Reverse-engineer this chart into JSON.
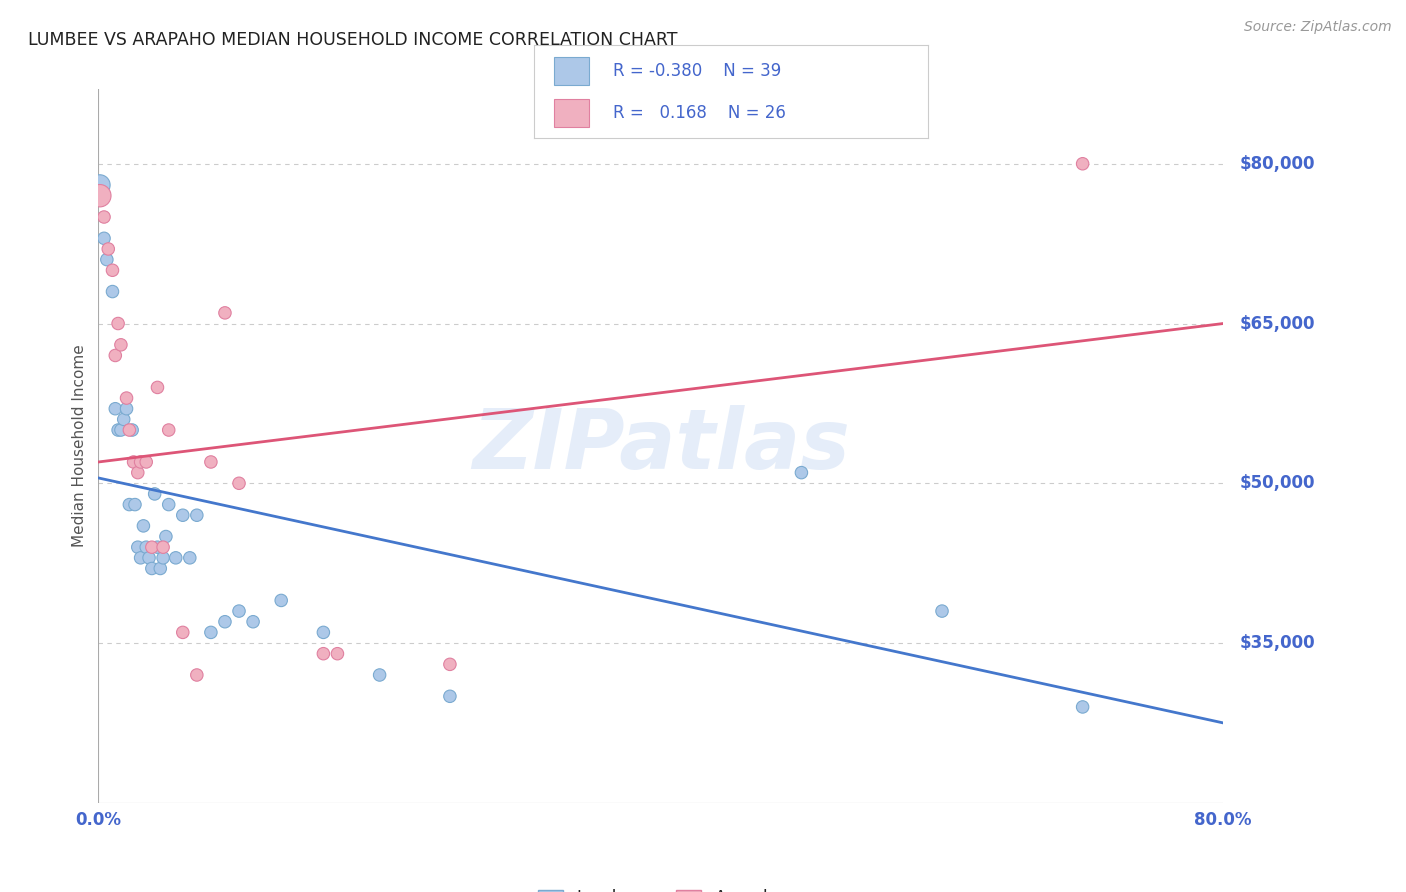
{
  "title": "LUMBEE VS ARAPAHO MEDIAN HOUSEHOLD INCOME CORRELATION CHART",
  "source": "Source: ZipAtlas.com",
  "ylabel": "Median Household Income",
  "watermark": "ZIPatlas",
  "lumbee": {
    "label": "Lumbee",
    "R": -0.38,
    "N": 39,
    "color": "#adc8e8",
    "edge_color": "#7aaad0",
    "line_color": "#4477cc",
    "x": [
      0.001,
      0.004,
      0.006,
      0.01,
      0.012,
      0.014,
      0.016,
      0.018,
      0.02,
      0.022,
      0.024,
      0.026,
      0.028,
      0.03,
      0.032,
      0.034,
      0.036,
      0.038,
      0.04,
      0.042,
      0.044,
      0.046,
      0.048,
      0.05,
      0.055,
      0.06,
      0.065,
      0.07,
      0.08,
      0.09,
      0.1,
      0.11,
      0.13,
      0.16,
      0.2,
      0.25,
      0.5,
      0.6,
      0.7
    ],
    "y": [
      78000,
      73000,
      71000,
      68000,
      57000,
      55000,
      55000,
      56000,
      57000,
      48000,
      55000,
      48000,
      44000,
      43000,
      46000,
      44000,
      43000,
      42000,
      49000,
      44000,
      42000,
      43000,
      45000,
      48000,
      43000,
      47000,
      43000,
      47000,
      36000,
      37000,
      38000,
      37000,
      39000,
      36000,
      32000,
      30000,
      51000,
      38000,
      29000
    ],
    "sizes": [
      220,
      80,
      80,
      80,
      80,
      80,
      80,
      80,
      80,
      80,
      80,
      80,
      80,
      80,
      80,
      80,
      80,
      80,
      80,
      80,
      80,
      80,
      80,
      80,
      80,
      80,
      80,
      80,
      80,
      80,
      80,
      80,
      80,
      80,
      80,
      80,
      80,
      80,
      80
    ]
  },
  "arapaho": {
    "label": "Arapaho",
    "R": 0.168,
    "N": 26,
    "color": "#f0b0c0",
    "edge_color": "#e080a0",
    "line_color": "#dd5577",
    "x": [
      0.001,
      0.004,
      0.007,
      0.01,
      0.012,
      0.014,
      0.016,
      0.02,
      0.022,
      0.025,
      0.028,
      0.03,
      0.034,
      0.038,
      0.042,
      0.046,
      0.05,
      0.06,
      0.07,
      0.08,
      0.09,
      0.1,
      0.16,
      0.17,
      0.25,
      0.7
    ],
    "y": [
      77000,
      75000,
      72000,
      70000,
      62000,
      65000,
      63000,
      58000,
      55000,
      52000,
      51000,
      52000,
      52000,
      44000,
      59000,
      44000,
      55000,
      36000,
      32000,
      52000,
      66000,
      50000,
      34000,
      34000,
      33000,
      80000
    ],
    "sizes": [
      260,
      80,
      80,
      80,
      80,
      80,
      80,
      80,
      80,
      80,
      80,
      80,
      80,
      80,
      80,
      80,
      80,
      80,
      80,
      80,
      80,
      80,
      80,
      80,
      80,
      80
    ]
  },
  "xlim": [
    0.0,
    0.8
  ],
  "ylim": [
    20000,
    87000
  ],
  "yticks": [
    35000,
    50000,
    65000,
    80000
  ],
  "ytick_labels": [
    "$35,000",
    "$50,000",
    "$65,000",
    "$80,000"
  ],
  "xticks": [
    0.0,
    0.8
  ],
  "xtick_labels": [
    "0.0%",
    "80.0%"
  ],
  "bg_color": "#ffffff",
  "grid_color": "#cccccc",
  "title_color": "#222222",
  "tick_label_color": "#4466cc",
  "ylabel_color": "#555555",
  "legend_text_color": "#4466cc",
  "lumbee_line_x": [
    0.0,
    0.8
  ],
  "lumbee_line_y": [
    50500,
    27500
  ],
  "arapaho_line_x": [
    0.0,
    0.8
  ],
  "arapaho_line_y": [
    52000,
    65000
  ]
}
